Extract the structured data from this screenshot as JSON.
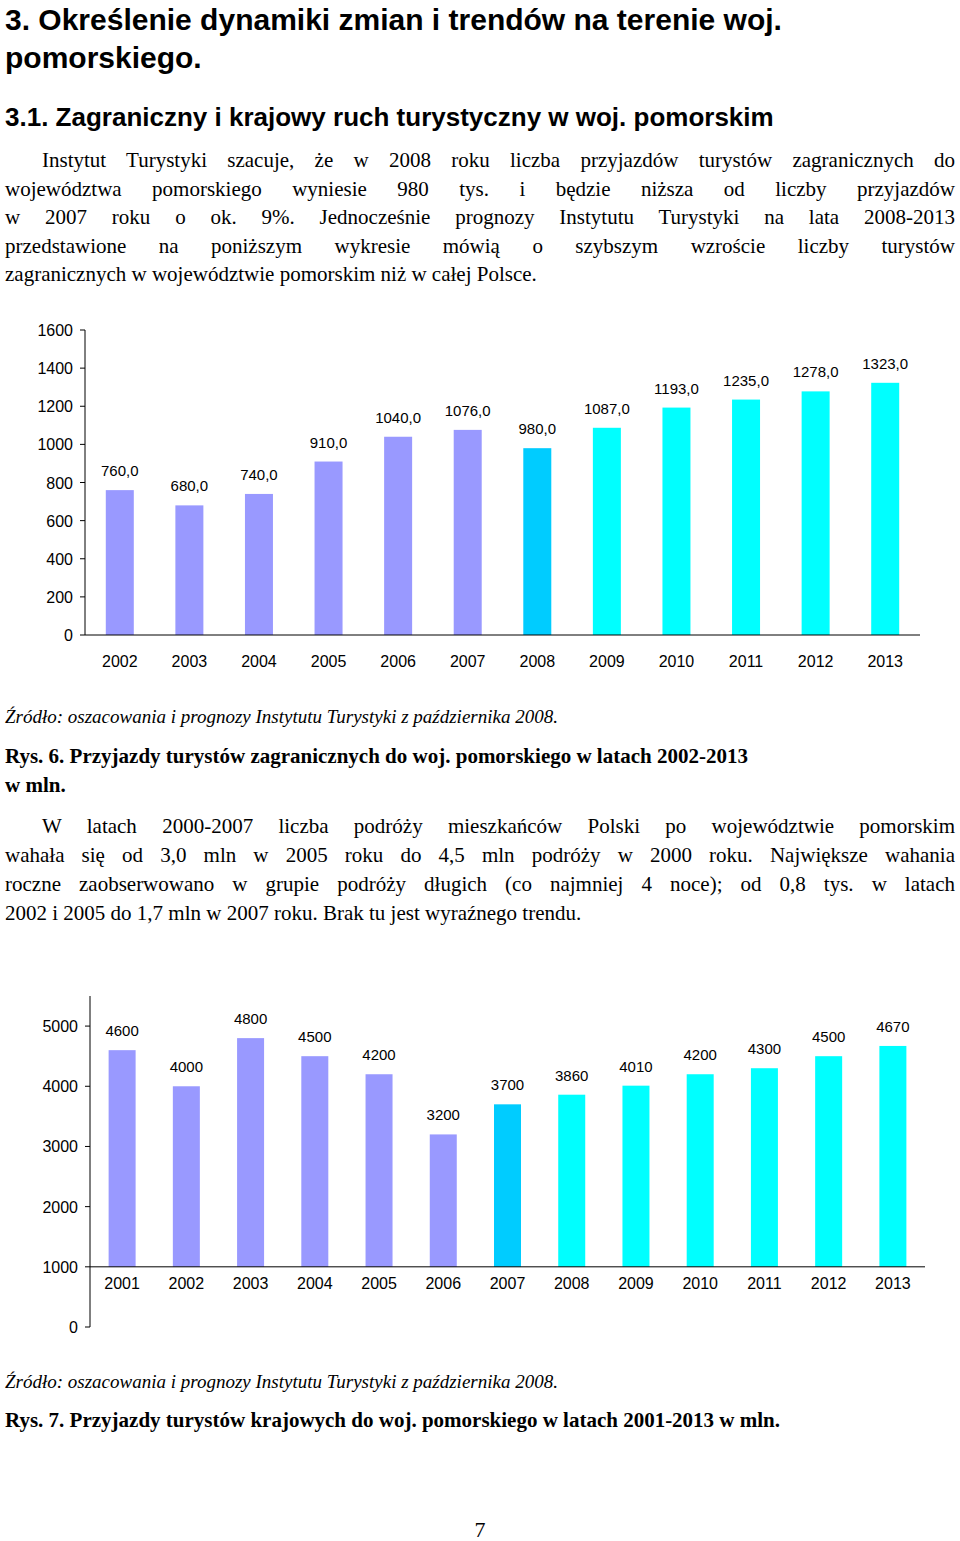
{
  "heading": {
    "lines": [
      "3. Określenie dynamiki zmian i trendów na terenie woj.",
      "pomorskiego."
    ]
  },
  "subheading": "3.1. Zagraniczny i krajowy ruch turystyczny w woj. pomorskim",
  "paragraph_1": {
    "lines": [
      "Instytut Turystyki szacuje, że w 2008 roku liczba przyjazdów turystów zagranicznych do",
      "województwa pomorskiego wyniesie 980 tys. i będzie niższa od liczby przyjazdów",
      "w 2007 roku o ok. 9%. Jednocześnie prognozy Instytutu Turystyki na lata 2008-2013",
      "przedstawione na poniższym wykresie mówią o szybszym wzroście liczby turystów",
      "zagranicznych w województwie pomorskim niż w całej Polsce."
    ]
  },
  "paragraph_2": {
    "lines": [
      "W latach 2000-2007 liczba podróży mieszkańców Polski po województwie pomorskim",
      "wahała się od 3,0 mln w 2005 roku do 4,5 mln podróży w 2000 roku. Największe wahania",
      "roczne zaobserwowano w grupie podróży długich (co najmniej 4 noce); od 0,8 tys. w latach",
      "2002 i 2005 do 1,7 mln w 2007 roku. Brak tu jest wyraźnego trendu."
    ]
  },
  "sources": [
    "Źródło: oszacowania i prognozy Instytutu Turystyki z października 2008.",
    "Źródło: oszacowania i prognozy Instytutu Turystyki z października 2008."
  ],
  "captions": [
    [
      "Rys. 6. Przyjazdy turystów zagranicznych do woj. pomorskiego w latach 2002-2013",
      "w mln."
    ],
    [
      "Rys. 7. Przyjazdy turystów krajowych do woj. pomorskiego w latach 2001-2013 w mln."
    ]
  ],
  "page_number": "7",
  "chart_data": [
    {
      "type": "bar",
      "categories": [
        "2002",
        "2003",
        "2004",
        "2005",
        "2006",
        "2007",
        "2008",
        "2009",
        "2010",
        "2011",
        "2012",
        "2013"
      ],
      "values": [
        760,
        680,
        740,
        910,
        1040,
        1076,
        980,
        1087,
        1193,
        1235,
        1278,
        1323
      ],
      "value_labels": [
        "760,0",
        "680,0",
        "740,0",
        "910,0",
        "1040,0",
        "1076,0",
        "980,0",
        "1087,0",
        "1193,0",
        "1235,0",
        "1278,0",
        "1323,0"
      ],
      "colors": [
        "#9999ff",
        "#9999ff",
        "#9999ff",
        "#9999ff",
        "#9999ff",
        "#9999ff",
        "#00ccff",
        "#00ffff",
        "#00ffff",
        "#00ffff",
        "#00ffff",
        "#00ffff"
      ],
      "ylim": [
        0,
        1600
      ],
      "yticks": [
        0,
        200,
        400,
        600,
        800,
        1000,
        1200,
        1400,
        1600
      ],
      "data_labels": true,
      "grid": false
    },
    {
      "type": "bar",
      "categories": [
        "2001",
        "2002",
        "2003",
        "2004",
        "2005",
        "2006",
        "2007",
        "2008",
        "2009",
        "2010",
        "2011",
        "2012",
        "2013"
      ],
      "values": [
        4600,
        4000,
        4800,
        4500,
        4200,
        3200,
        3700,
        3860,
        4010,
        4200,
        4300,
        4500,
        4670
      ],
      "colors": [
        "#9999ff",
        "#9999ff",
        "#9999ff",
        "#9999ff",
        "#9999ff",
        "#9999ff",
        "#00ccff",
        "#00ffff",
        "#00ffff",
        "#00ffff",
        "#00ffff",
        "#00ffff",
        "#00ffff"
      ],
      "ylim": [
        0,
        5500
      ],
      "yticks": [
        0,
        1000,
        2000,
        3000,
        4000,
        5000
      ],
      "data_labels": true,
      "grid": false
    }
  ]
}
